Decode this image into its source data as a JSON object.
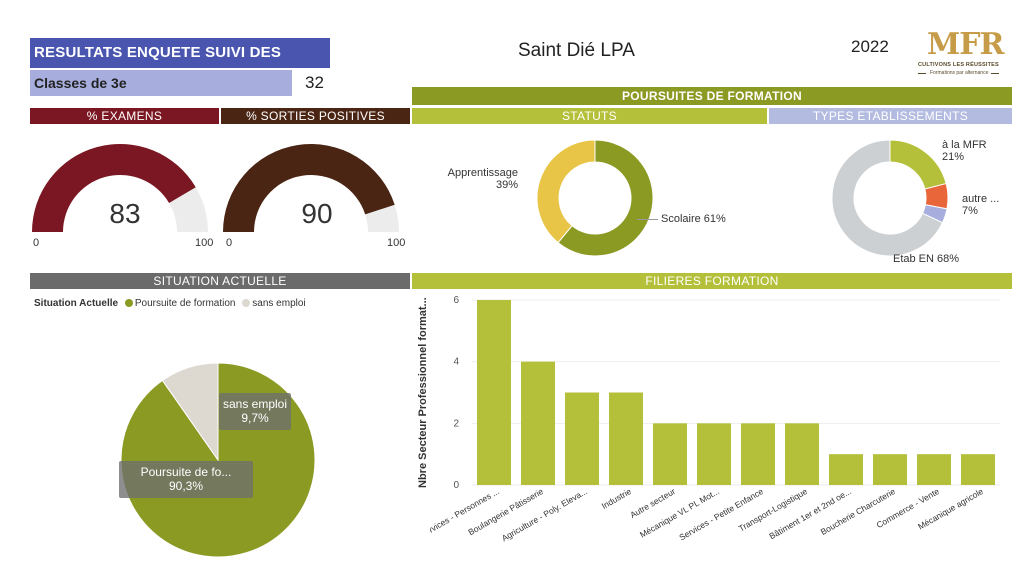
{
  "header": {
    "title": "RESULTATS ENQUETE SUIVI DES ANCIENS",
    "class_label": "Classes de 3e",
    "class_count": "32",
    "site": "Saint Dié LPA",
    "year": "2022",
    "logo_text": "MFR",
    "logo_slogan": "CULTIVONS LES RÉUSSITES",
    "logo_tagline": "Formations par alternance"
  },
  "sections": {
    "examens": "% EXAMENS",
    "sorties": "% SORTIES POSITIVES",
    "poursuites": "POURSUITES DE FORMATION",
    "statuts": "STATUTS",
    "types": "TYPES ETABLISSEMENTS",
    "situation": "SITUATION ACTUELLE",
    "filieres": "FILIERES FORMATION"
  },
  "colors": {
    "blue": "#4a55b0",
    "maroon": "#7b1722",
    "brown": "#4b2514",
    "olive": "#8b9a23",
    "lime": "#b4c039",
    "yellow": "#e9c547",
    "lavender": "#b3bbe0",
    "orange": "#e8663a",
    "grey": "#cdd0d3",
    "dark_grey": "#6b6b6b"
  },
  "chart_data": [
    {
      "type": "gauge",
      "value": 83,
      "min_label": "0",
      "max_label": "100",
      "color": "#7b1722"
    },
    {
      "type": "gauge",
      "value": 90,
      "min_label": "0",
      "max_label": "100",
      "color": "#4b2514"
    },
    {
      "type": "pie",
      "variant": "donut",
      "slices": [
        {
          "label": "Scolaire",
          "value": 61,
          "text": "Scolaire 61%",
          "color": "#8b9a23"
        },
        {
          "label": "Apprentissage",
          "value": 39,
          "text": "39%",
          "color": "#e9c547"
        }
      ]
    },
    {
      "type": "pie",
      "variant": "donut",
      "slices": [
        {
          "label": "à la MFR",
          "value": 21,
          "text": "21%",
          "color": "#b4c039"
        },
        {
          "label": "autre ...",
          "value": 7,
          "text": "7%",
          "color": "#e8663a"
        },
        {
          "label": "",
          "value": 4,
          "text": "",
          "color": "#a7aede"
        },
        {
          "label": "Etab EN",
          "value": 68,
          "text": "Etab EN 68%",
          "color": "#cdd0d3"
        }
      ]
    },
    {
      "type": "pie",
      "legend_title": "Situation Actuelle",
      "slices": [
        {
          "label": "Poursuite de formation",
          "short": "Poursuite de fo...",
          "value": 90.3,
          "text": "90,3%",
          "color": "#8b9a23"
        },
        {
          "label": "sans emploi",
          "short": "sans emploi",
          "value": 9.7,
          "text": "9,7%",
          "color": "#ddd8d0"
        }
      ]
    },
    {
      "type": "bar",
      "ylabel": "Nbre Secteur Professionnel format...",
      "ylim": [
        0,
        6
      ],
      "yticks": [
        "0",
        "2",
        "4",
        "6"
      ],
      "categories": [
        "Services - Personnes ...",
        "Boulangerie Pâtisserie",
        "Agriculture - Poly. Eleva...",
        "Industrie",
        "Autre secteur",
        "Mécanique VL PL Mot...",
        "Services - Petite Enfance",
        "Transport-Logistique",
        "Bâtiment 1er et 2nd oe...",
        "Boucherie Charcuterie",
        "Commerce - Vente",
        "Mécanique agricole"
      ],
      "values": [
        6,
        4,
        3,
        3,
        2,
        2,
        2,
        2,
        1,
        1,
        1,
        1
      ],
      "color": "#b4c039"
    }
  ]
}
